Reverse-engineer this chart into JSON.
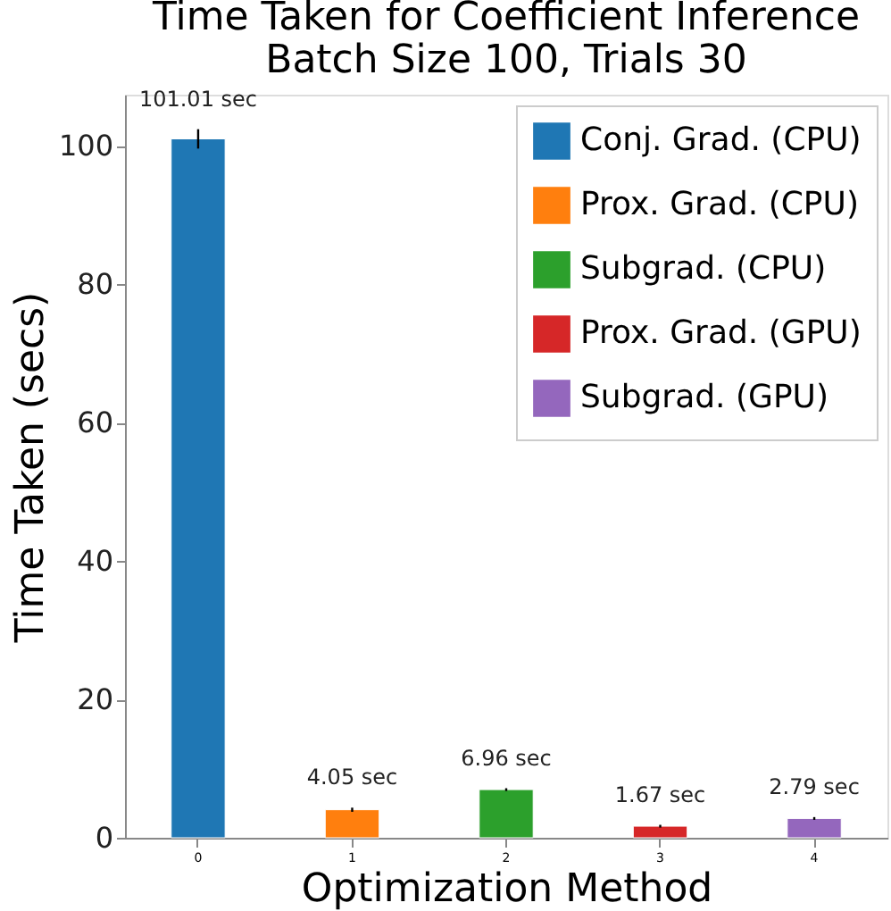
{
  "chart_data": {
    "type": "bar",
    "title": "Time Taken for Coefficient Inference\nBatch Size 100, Trials 30",
    "xlabel": "Optimization Method",
    "ylabel": "Time Taken (secs)",
    "categories": [
      "0",
      "1",
      "2",
      "3",
      "4"
    ],
    "series": [
      {
        "name": "Conj. Grad. (CPU)",
        "color": "#1f77b4",
        "values": [
          101.01,
          null,
          null,
          null,
          null
        ],
        "errors": [
          1.4,
          null,
          null,
          null,
          null
        ],
        "value_labels": [
          "101.01 sec",
          null,
          null,
          null,
          null
        ]
      },
      {
        "name": "Prox. Grad. (CPU)",
        "color": "#ff7f0e",
        "values": [
          null,
          4.05,
          null,
          null,
          null
        ],
        "errors": [
          null,
          0.3,
          null,
          null,
          null
        ],
        "value_labels": [
          null,
          "4.05 sec",
          null,
          null,
          null
        ]
      },
      {
        "name": "Subgrad. (CPU)",
        "color": "#2ca02c",
        "values": [
          null,
          null,
          6.96,
          null,
          null
        ],
        "errors": [
          null,
          null,
          0.2,
          null,
          null
        ],
        "value_labels": [
          null,
          null,
          "6.96 sec",
          null,
          null
        ]
      },
      {
        "name": "Prox. Grad. (GPU)",
        "color": "#d62728",
        "values": [
          null,
          null,
          null,
          1.67,
          null
        ],
        "errors": [
          null,
          null,
          null,
          0.2,
          null
        ],
        "value_labels": [
          null,
          null,
          null,
          "1.67 sec",
          null
        ]
      },
      {
        "name": "Subgrad. (GPU)",
        "color": "#9467bd",
        "values": [
          null,
          null,
          null,
          null,
          2.79
        ],
        "errors": [
          null,
          null,
          null,
          null,
          0.2
        ],
        "value_labels": [
          null,
          null,
          null,
          null,
          "2.79 sec"
        ]
      }
    ],
    "ylim": [
      0,
      107.4
    ],
    "yticks": [
      0,
      20,
      40,
      60,
      80,
      100
    ],
    "grid": false,
    "legend": "top right"
  }
}
